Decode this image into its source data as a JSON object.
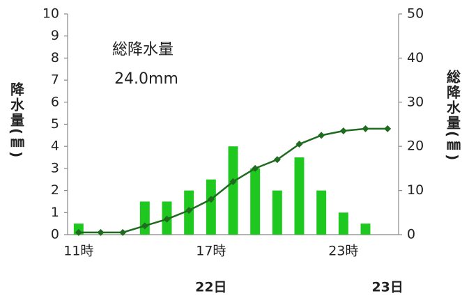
{
  "chart_data": {
    "type": "bar_line",
    "annotation": [
      "総降水量",
      "24.0mm"
    ],
    "y_label": "降水量(㎜)",
    "y2_label": "総降水量(㎜)",
    "categories": [
      "11時",
      null,
      null,
      null,
      null,
      null,
      "17時",
      null,
      null,
      null,
      null,
      null,
      "23時",
      null,
      null
    ],
    "group_labels": [
      null,
      null,
      null,
      null,
      null,
      null,
      "22日",
      null,
      null,
      null,
      null,
      null,
      null,
      null,
      "23日"
    ],
    "series": [
      {
        "type": "bar",
        "color": "#1ec81e",
        "values": [
          0.5,
          0,
          0,
          1.5,
          1.5,
          2,
          2.5,
          4,
          3,
          2,
          3.5,
          2,
          1,
          0.5,
          0
        ]
      },
      {
        "type": "line",
        "axis": "y2",
        "color": "#1f6b1f",
        "values": [
          0.5,
          0.5,
          0.5,
          2,
          3.5,
          5.5,
          8,
          12,
          15,
          17,
          20.5,
          22.5,
          23.5,
          24,
          24
        ]
      }
    ],
    "ylim": [
      0,
      10
    ],
    "yticks": [
      0,
      1,
      2,
      3,
      4,
      5,
      6,
      7,
      8,
      9,
      10
    ],
    "y2lim": [
      0,
      50
    ],
    "y2ticks": [
      0,
      10,
      20,
      30,
      40,
      50
    ]
  }
}
